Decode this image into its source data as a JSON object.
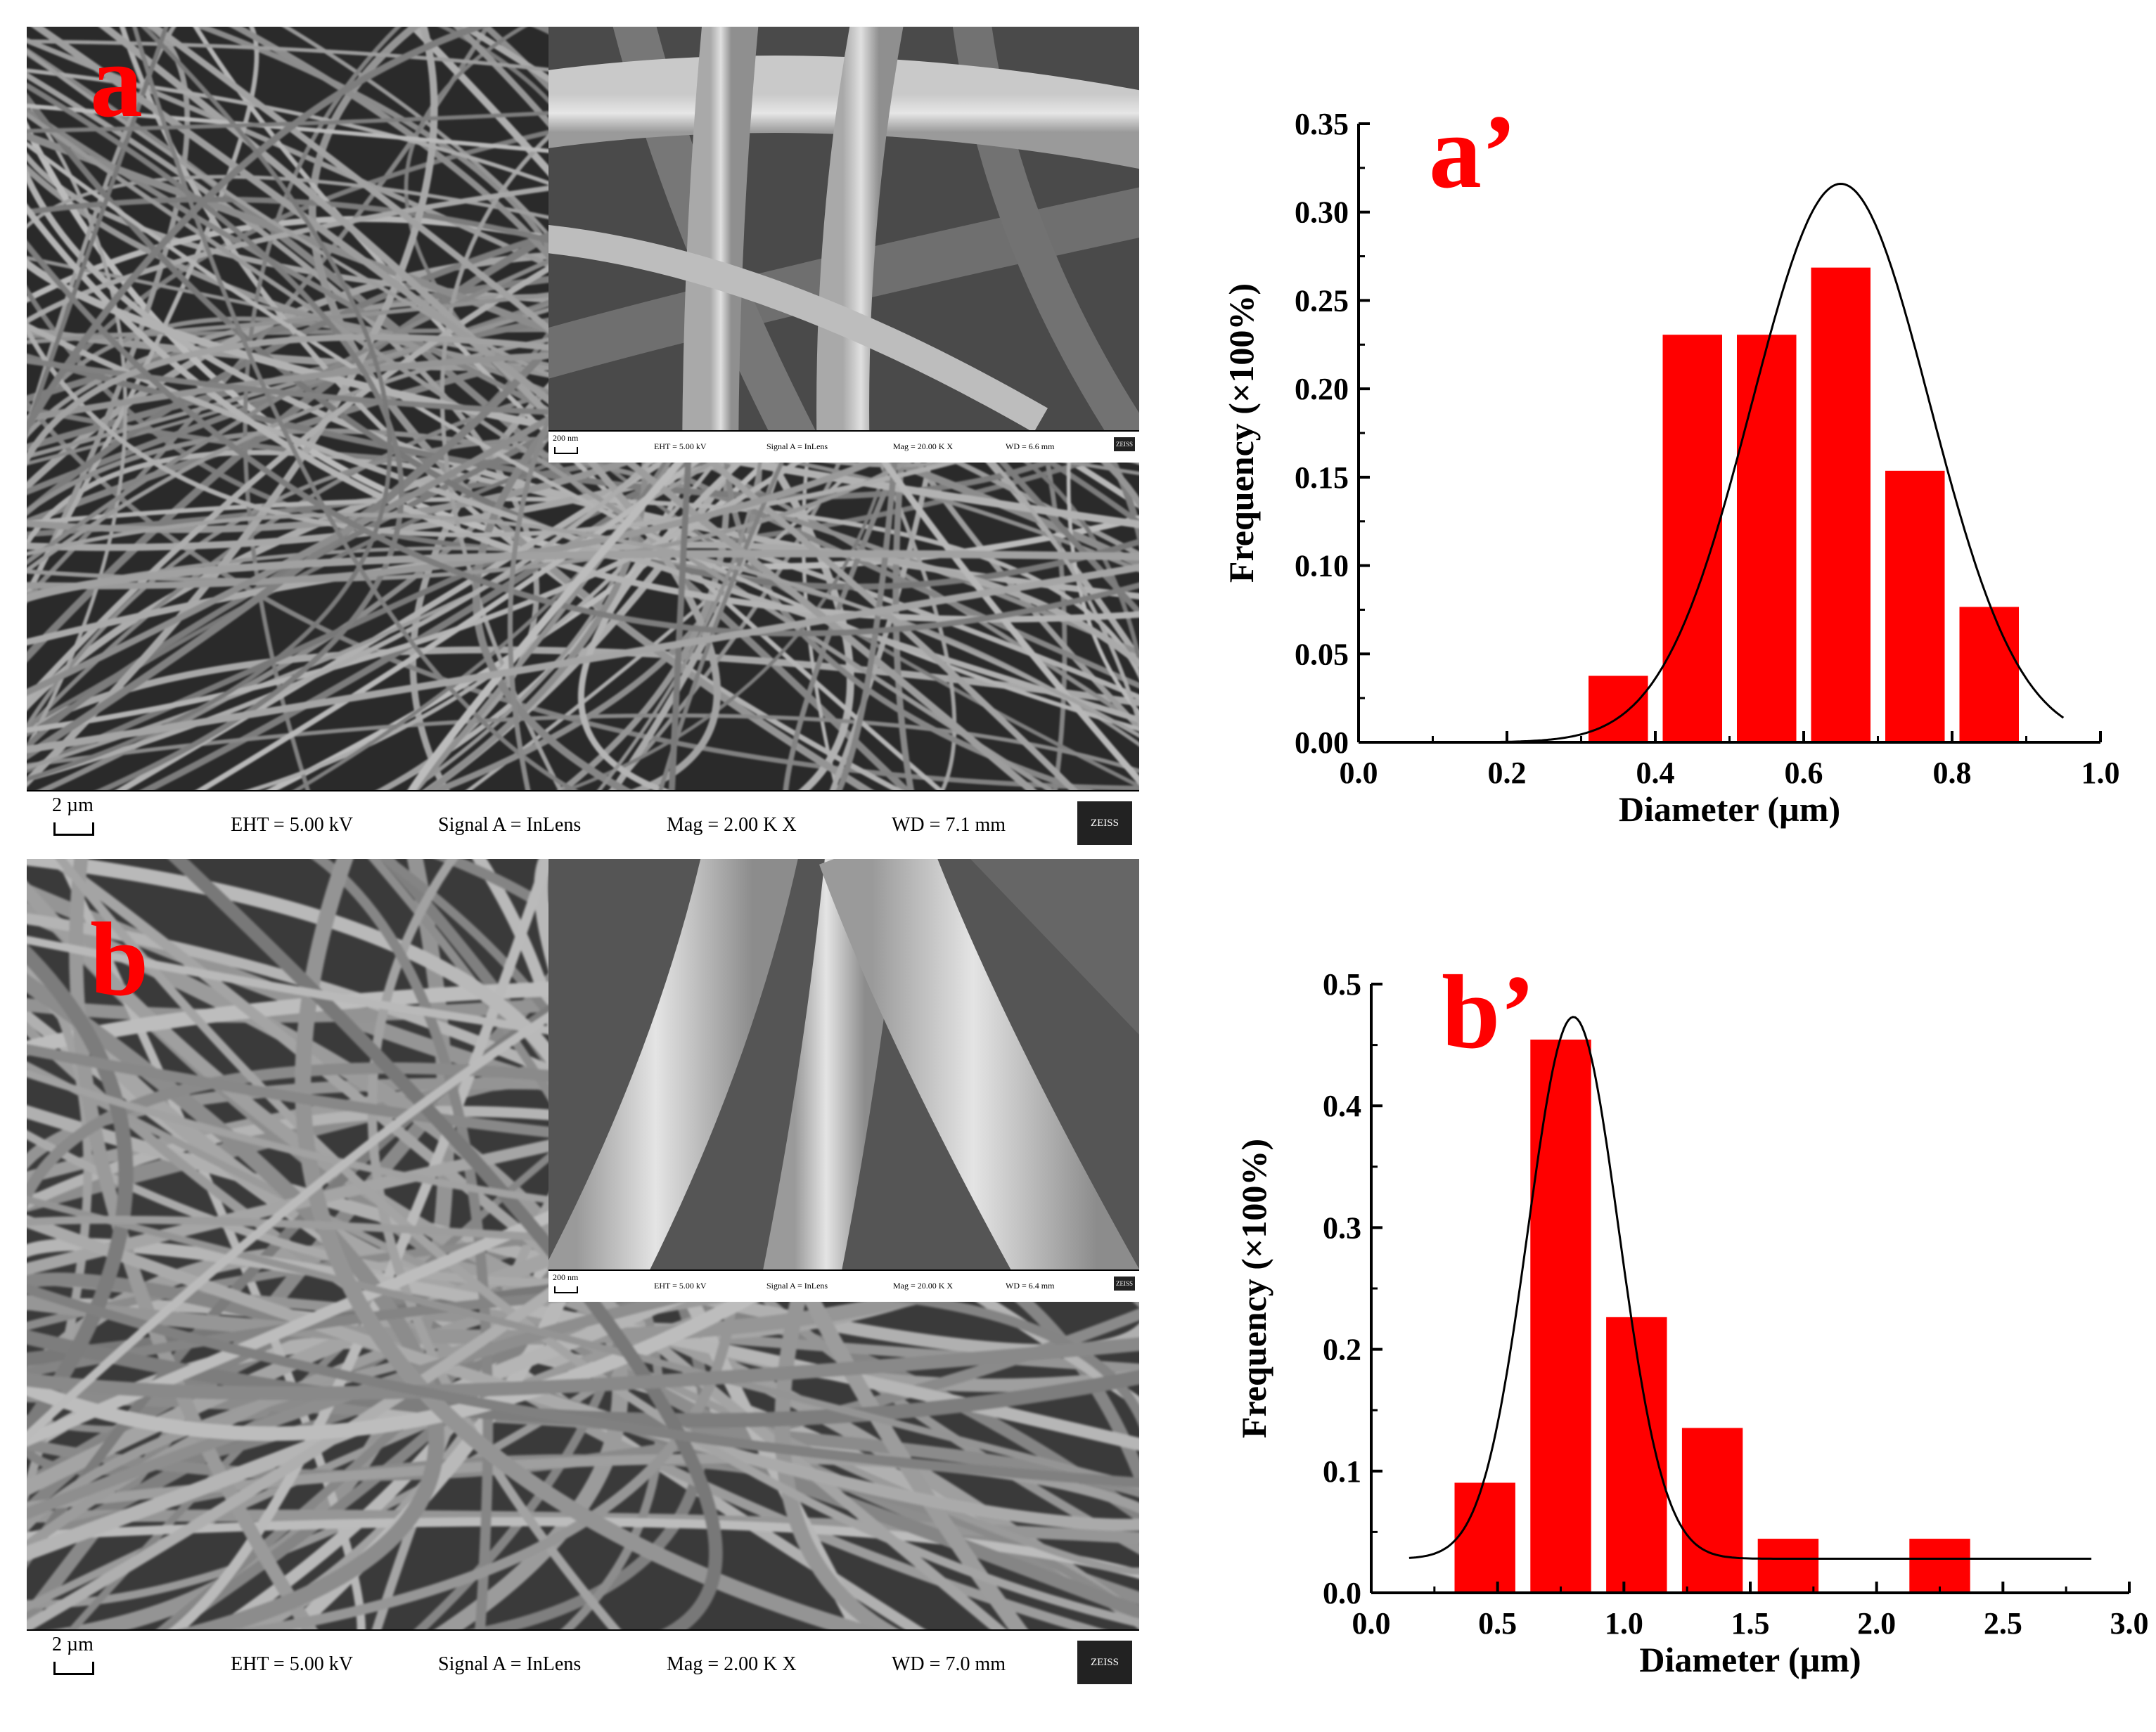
{
  "sem_panels": [
    {
      "label": "a",
      "databar": {
        "scale": "2 µm",
        "eht": "EHT =  5.00 kV",
        "signal": "Signal A = InLens",
        "mag": "Mag =     2.00 K X",
        "wd": "WD =  7.1 mm",
        "logo": "ZEISS"
      },
      "inset_databar": {
        "scale": "200 nm",
        "eht": "EHT =  5.00 kV",
        "signal": "Signal A = InLens",
        "mag": "Mag =   20.00 K X",
        "wd": "WD =  6.6 mm",
        "logo": "ZEISS"
      }
    },
    {
      "label": "b",
      "databar": {
        "scale": "2 µm",
        "eht": "EHT =  5.00 kV",
        "signal": "Signal A = InLens",
        "mag": "Mag =     2.00 K X",
        "wd": "WD =  7.0 mm",
        "logo": "ZEISS"
      },
      "inset_databar": {
        "scale": "200 nm",
        "eht": "EHT =  5.00 kV",
        "signal": "Signal A = InLens",
        "mag": "Mag =   20.00 K X",
        "wd": "WD =  6.4 mm",
        "logo": "ZEISS"
      }
    }
  ],
  "chart_data": [
    {
      "type": "bar",
      "panel_label": "a’",
      "xlabel": "Diameter (µm)",
      "ylabel": "Frequency (×100%)",
      "xlim": [
        0.0,
        1.0
      ],
      "ylim": [
        0.0,
        0.35
      ],
      "xticks": [
        "0.0",
        "0.2",
        "0.4",
        "0.6",
        "0.8",
        "1.0"
      ],
      "yticks": [
        "0.00",
        "0.05",
        "0.10",
        "0.15",
        "0.20",
        "0.25",
        "0.30",
        "0.35"
      ],
      "bin_width": 0.1,
      "bin_centers": [
        0.35,
        0.45,
        0.55,
        0.65,
        0.75,
        0.85
      ],
      "values": [
        0.038,
        0.231,
        0.231,
        0.269,
        0.154,
        0.077
      ],
      "fit": {
        "type": "gaussian",
        "mean": 0.65,
        "peak": 0.316,
        "sigma": 0.12,
        "offset": 0.0,
        "x_range": [
          0.0,
          0.95
        ]
      },
      "bar_color": "#ff0000"
    },
    {
      "type": "bar",
      "panel_label": "b’",
      "xlabel": "Diameter (µm)",
      "ylabel": "Frequency (×100%)",
      "xlim": [
        0.0,
        3.0
      ],
      "ylim": [
        0.0,
        0.5
      ],
      "xticks": [
        "0.0",
        "0.5",
        "1.0",
        "1.5",
        "2.0",
        "2.5",
        "3.0"
      ],
      "yticks": [
        "0.0",
        "0.1",
        "0.2",
        "0.3",
        "0.4",
        "0.5"
      ],
      "bin_width": 0.3,
      "bin_centers": [
        0.45,
        0.75,
        1.05,
        1.35,
        1.65,
        2.25
      ],
      "values": [
        0.091,
        0.455,
        0.227,
        0.136,
        0.045,
        0.045
      ],
      "fit": {
        "type": "gaussian",
        "mean": 0.8,
        "peak": 0.473,
        "sigma": 0.18,
        "offset": 0.028,
        "x_range": [
          0.15,
          2.85
        ]
      },
      "bar_color": "#ff0000"
    }
  ]
}
